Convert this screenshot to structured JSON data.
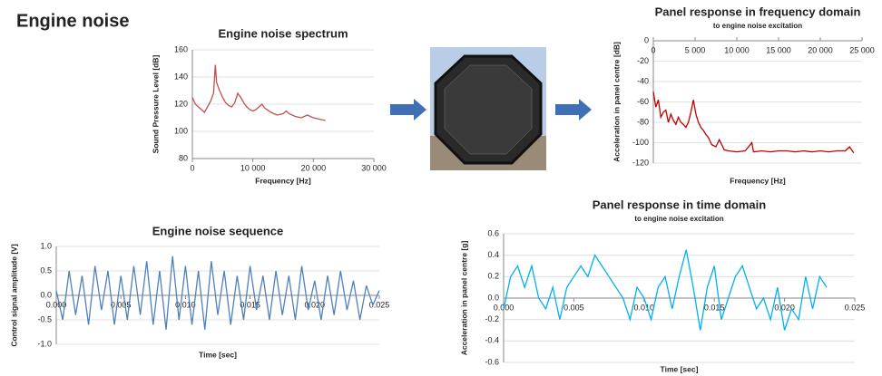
{
  "title": "Engine noise",
  "chart_data": [
    {
      "type": "line",
      "title": "Engine noise spectrum",
      "xlabel": "Frequency [Hz]",
      "ylabel": "Sound Pressure Level [dB]",
      "color": "#c0504d",
      "grid": true,
      "xlim": [
        0,
        30000
      ],
      "xticks": [
        0,
        {
          "value": 10000,
          "label": "10 000"
        },
        {
          "value": 20000,
          "label": "20 000"
        },
        {
          "value": 30000,
          "label": "30 000"
        }
      ],
      "ylim": [
        80,
        160
      ],
      "yticks": [
        80,
        100,
        120,
        140,
        160
      ],
      "x": [
        0,
        500,
        1000,
        1500,
        2000,
        2500,
        3000,
        3500,
        3800,
        4000,
        4500,
        5000,
        5500,
        6000,
        6500,
        7000,
        7500,
        8000,
        8500,
        9000,
        9500,
        10000,
        10500,
        11000,
        11500,
        12000,
        13000,
        14000,
        15000,
        15500,
        16000,
        17000,
        18000,
        18500,
        19000,
        20000,
        21000,
        22000
      ],
      "values": [
        125,
        120,
        118,
        116,
        114,
        118,
        122,
        128,
        149,
        136,
        130,
        125,
        121,
        119,
        118,
        121,
        128,
        125,
        121,
        118,
        116,
        115,
        116,
        118,
        120,
        117,
        114,
        112,
        113,
        115,
        113,
        111,
        110,
        111,
        112,
        110,
        109,
        108
      ]
    },
    {
      "type": "line",
      "title": "Panel response in frequency domain",
      "subtitle": "to engine noise excitation",
      "xlabel": "Frequency [Hz]",
      "ylabel": "Acceleration in panel centre [dB]",
      "color": "#c00000",
      "grid": true,
      "xlim": [
        0,
        25000
      ],
      "xticks": [
        0,
        {
          "value": 5000,
          "label": "5 000"
        },
        {
          "value": 10000,
          "label": "10 000"
        },
        {
          "value": 15000,
          "label": "15 000"
        },
        {
          "value": 20000,
          "label": "20 000"
        },
        {
          "value": 25000,
          "label": "25 000"
        }
      ],
      "ylim": [
        -120,
        0
      ],
      "yticks": [
        0,
        -20,
        -40,
        -60,
        -80,
        -100,
        -120
      ],
      "x": [
        0,
        300,
        600,
        900,
        1200,
        1500,
        1800,
        2100,
        2400,
        2700,
        3000,
        3300,
        3600,
        3900,
        4200,
        4500,
        4800,
        5100,
        5400,
        5700,
        6000,
        6300,
        6600,
        7000,
        7500,
        7900,
        8500,
        9000,
        10000,
        11000,
        11800,
        12000,
        13000,
        14000,
        15000,
        16000,
        17000,
        18000,
        19000,
        20000,
        21000,
        22000,
        23000,
        23500,
        24000
      ],
      "values": [
        -50,
        -65,
        -58,
        -75,
        -70,
        -68,
        -80,
        -72,
        -78,
        -82,
        -75,
        -80,
        -82,
        -85,
        -80,
        -70,
        -58,
        -72,
        -80,
        -85,
        -88,
        -92,
        -95,
        -102,
        -104,
        -97,
        -107,
        -108,
        -109,
        -108,
        -100,
        -109,
        -108,
        -109,
        -108,
        -108,
        -109,
        -108,
        -109,
        -108,
        -109,
        -108,
        -108,
        -104,
        -110
      ]
    },
    {
      "type": "line",
      "title": "Engine noise sequence",
      "xlabel": "Time [sec]",
      "ylabel": "Control signal amplitude [V]",
      "color": "#4f81bd",
      "grid": true,
      "xlim": [
        0,
        0.025
      ],
      "xticks": [
        {
          "value": 0,
          "label": "0.000"
        },
        {
          "value": 0.005,
          "label": "0.005"
        },
        {
          "value": 0.01,
          "label": "0.010"
        },
        {
          "value": 0.015,
          "label": "0.015"
        },
        {
          "value": 0.02,
          "label": "0.020"
        },
        {
          "value": 0.025,
          "label": "0.025"
        }
      ],
      "ylim": [
        -1,
        1
      ],
      "yticks": [
        {
          "value": -1,
          "label": "-1.0"
        },
        -0.5,
        {
          "value": 0,
          "label": "0.0"
        },
        0.5,
        {
          "value": 1,
          "label": "1.0"
        }
      ],
      "x": [
        0,
        0.0005,
        0.001,
        0.0015,
        0.002,
        0.0025,
        0.003,
        0.0035,
        0.004,
        0.0045,
        0.005,
        0.0055,
        0.006,
        0.0065,
        0.007,
        0.0075,
        0.008,
        0.0085,
        0.009,
        0.0095,
        0.01,
        0.0105,
        0.011,
        0.0115,
        0.012,
        0.0125,
        0.013,
        0.0135,
        0.014,
        0.0145,
        0.015,
        0.0155,
        0.016,
        0.0165,
        0.017,
        0.0175,
        0.018,
        0.0185,
        0.019,
        0.0195,
        0.02,
        0.0205,
        0.021,
        0.0215,
        0.022,
        0.0225,
        0.023,
        0.0235,
        0.024,
        0.0245,
        0.025
      ],
      "values": [
        0.1,
        -0.5,
        0.5,
        -0.4,
        0.4,
        -0.6,
        0.6,
        -0.3,
        0.5,
        -0.6,
        0.4,
        -0.5,
        0.6,
        -0.4,
        0.7,
        -0.6,
        0.5,
        -0.7,
        0.8,
        -0.5,
        0.6,
        -0.6,
        0.5,
        -0.7,
        0.7,
        -0.4,
        0.5,
        -0.6,
        0.4,
        -0.5,
        0.6,
        -0.3,
        0.4,
        -0.5,
        0.5,
        -0.4,
        0.4,
        -0.5,
        0.6,
        -0.3,
        0.3,
        -0.5,
        0.4,
        -0.4,
        0.5,
        -0.3,
        0.3,
        -0.5,
        0.2,
        -0.2,
        0.1
      ]
    },
    {
      "type": "line",
      "title": "Panel response in time domain",
      "subtitle": "to engine noise excitation",
      "xlabel": "Time [sec]",
      "ylabel": "Acceleration in panel centre [g]",
      "color": "#00b0f0",
      "grid": true,
      "xlim": [
        0,
        0.025
      ],
      "xticks": [
        {
          "value": 0,
          "label": "0.000"
        },
        {
          "value": 0.005,
          "label": "0.005"
        },
        {
          "value": 0.01,
          "label": "0.010"
        },
        {
          "value": 0.015,
          "label": "0.015"
        },
        {
          "value": 0.02,
          "label": "0.020"
        },
        {
          "value": 0.025,
          "label": "0.025"
        }
      ],
      "ylim": [
        -0.6,
        0.6
      ],
      "yticks": [
        -0.6,
        -0.4,
        -0.2,
        {
          "value": 0,
          "label": "0.0"
        },
        0.2,
        0.4,
        0.6
      ],
      "x": [
        0,
        0.0005,
        0.001,
        0.0015,
        0.002,
        0.0025,
        0.003,
        0.0035,
        0.004,
        0.0045,
        0.005,
        0.0055,
        0.006,
        0.0065,
        0.007,
        0.0075,
        0.008,
        0.0085,
        0.009,
        0.0095,
        0.01,
        0.0105,
        0.011,
        0.0115,
        0.012,
        0.0125,
        0.013,
        0.0135,
        0.014,
        0.0145,
        0.015,
        0.0155,
        0.016,
        0.0165,
        0.017,
        0.0175,
        0.018,
        0.0185,
        0.019,
        0.0195,
        0.02,
        0.0205,
        0.021,
        0.0215,
        0.022,
        0.0225,
        0.023
      ],
      "values": [
        -0.1,
        0.2,
        0.3,
        0.1,
        0.3,
        0.0,
        -0.1,
        0.1,
        -0.2,
        0.1,
        0.2,
        0.3,
        0.2,
        0.4,
        0.3,
        0.2,
        0.1,
        0.0,
        -0.2,
        0.1,
        0.0,
        -0.2,
        0.1,
        0.2,
        -0.1,
        0.2,
        0.45,
        0.1,
        -0.3,
        0.1,
        0.3,
        -0.2,
        0.0,
        0.2,
        0.3,
        0.1,
        -0.1,
        0.0,
        -0.2,
        0.1,
        -0.3,
        -0.1,
        -0.2,
        0.2,
        -0.1,
        0.2,
        0.1
      ]
    }
  ]
}
